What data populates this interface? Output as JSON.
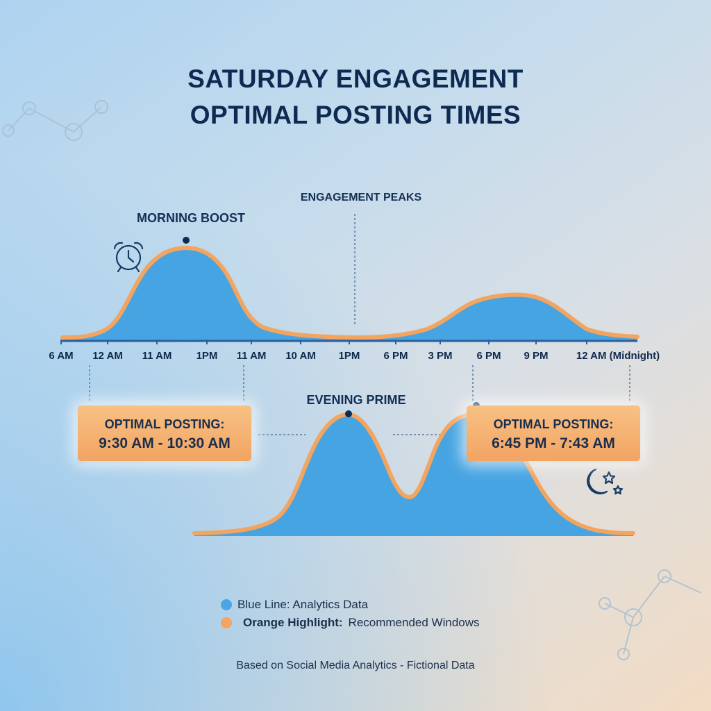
{
  "title": {
    "line1": "SATURDAY ENGAGEMENT",
    "line2": "OPTIMAL POSTING TIMES"
  },
  "annotations": {
    "morning": "MORNING BOOST",
    "peaks": "ENGAGEMENT PEAKS",
    "evening": "EVENING PRIME"
  },
  "callouts": {
    "left": {
      "title": "OPTIMAL POSTING:",
      "value": "9:30 AM - 10:30 AM"
    },
    "right": {
      "title": "OPTIMAL POSTING:",
      "value": "6:45 PM - 7:43 AM"
    }
  },
  "legend": {
    "blue": {
      "label": "Blue Line: Analytics Data",
      "color": "#4aa6e4"
    },
    "orange": {
      "label_bold": "Orange Highlight:",
      "label_rest": "Recommended Windows",
      "color": "#f5a35e"
    }
  },
  "footer": "Based on Social Media Analytics - Fictional Data",
  "chart_data": [
    {
      "type": "area",
      "title": "",
      "ticks": [
        "6 AM",
        "12 AM",
        "11 AM",
        "1PM",
        "11 AM",
        "10 AM",
        "1PM",
        "6 PM",
        "3 PM",
        "6 PM",
        "9 PM",
        "12 AM (Midnight)"
      ],
      "series": [
        {
          "values": [
            0.05,
            0.08,
            0.62,
            1.0,
            0.85,
            0.12,
            0.06,
            0.05,
            0.05,
            0.08,
            0.45,
            0.62,
            0.5,
            0.1,
            0.05
          ]
        }
      ],
      "ylim": [
        0,
        1
      ],
      "grid": false,
      "legend": "bottom-center"
    },
    {
      "type": "area",
      "title": "",
      "series": [
        {
          "values": [
            0.05,
            0.06,
            0.2,
            0.85,
            1.0,
            0.55,
            0.3,
            0.75,
            0.96,
            0.48,
            0.15,
            0.05
          ]
        }
      ],
      "ylim": [
        0,
        1
      ],
      "grid": false
    }
  ]
}
